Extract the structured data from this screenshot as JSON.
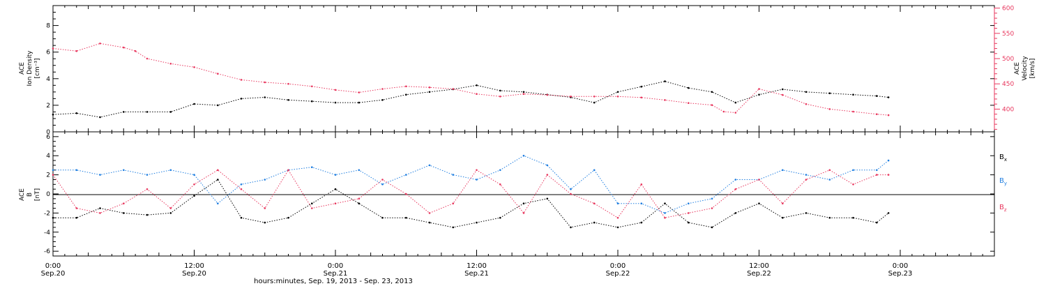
{
  "colors": {
    "black": "#000000",
    "pink": "#e8375e",
    "blue": "#1f7ee0",
    "axis": "#000000",
    "pinkAxis": "#e8375e"
  },
  "xaxis": {
    "label": "hours:minutes, Sep. 19, 2013 - Sep. 23, 2013",
    "range_hours": [
      0,
      80
    ],
    "ticks": [
      {
        "hour": 0,
        "time": "0:00",
        "date": "Sep.20"
      },
      {
        "hour": 12,
        "time": "12:00",
        "date": "Sep.20"
      },
      {
        "hour": 24,
        "time": "0:00",
        "date": "Sep.21"
      },
      {
        "hour": 36,
        "time": "12:00",
        "date": "Sep.21"
      },
      {
        "hour": 48,
        "time": "0:00",
        "date": "Sep.22"
      },
      {
        "hour": 60,
        "time": "12:00",
        "date": "Sep.22"
      },
      {
        "hour": 72,
        "time": "0:00",
        "date": "Sep.23"
      }
    ]
  },
  "chart_data": [
    {
      "type": "scatter",
      "panel": "top",
      "title": "",
      "ylabel_left": [
        "ACE",
        "Ion Density",
        "[cm⁻³]"
      ],
      "ylabel_right": [
        "ACE",
        "Velocity",
        "[km/s]"
      ],
      "ylim_left": [
        0,
        9.5
      ],
      "ylim_right": [
        355,
        605
      ],
      "yticks_left": [
        0,
        2,
        4,
        6,
        8
      ],
      "yticks_right": [
        400,
        450,
        500,
        550,
        600
      ],
      "series": [
        {
          "name": "",
          "axis": "left",
          "color": "black",
          "x_hours": [
            0,
            2,
            4,
            6,
            8,
            10,
            12,
            14,
            16,
            18,
            20,
            22,
            24,
            26,
            28,
            30,
            32,
            34,
            36,
            38,
            40,
            42,
            44,
            46,
            48,
            50,
            52,
            54,
            56,
            58,
            60,
            62,
            64,
            66,
            68,
            70,
            71
          ],
          "y": [
            1.3,
            1.4,
            1.1,
            1.5,
            1.5,
            1.5,
            2.1,
            2.0,
            2.5,
            2.6,
            2.4,
            2.3,
            2.2,
            2.2,
            2.4,
            2.8,
            3.0,
            3.2,
            3.5,
            3.1,
            3.0,
            2.8,
            2.6,
            2.2,
            3.0,
            3.4,
            3.8,
            3.3,
            3.0,
            2.2,
            2.8,
            3.2,
            3.0,
            2.9,
            2.8,
            2.7,
            2.6
          ]
        },
        {
          "name": "",
          "axis": "right",
          "color": "pink",
          "x_hours": [
            0,
            2,
            4,
            6,
            7,
            8,
            10,
            12,
            14,
            16,
            18,
            20,
            22,
            24,
            26,
            28,
            30,
            32,
            34,
            36,
            38,
            40,
            42,
            44,
            46,
            48,
            50,
            52,
            54,
            56,
            57,
            58,
            60,
            62,
            64,
            66,
            68,
            70,
            71
          ],
          "y": [
            520,
            515,
            530,
            522,
            515,
            500,
            490,
            483,
            470,
            458,
            453,
            450,
            445,
            438,
            433,
            440,
            445,
            443,
            440,
            430,
            425,
            430,
            428,
            425,
            425,
            425,
            423,
            418,
            412,
            408,
            395,
            393,
            440,
            428,
            410,
            400,
            395,
            390,
            388
          ]
        }
      ]
    },
    {
      "type": "scatter",
      "panel": "bottom",
      "title": "",
      "ylabel_left": [
        "ACE",
        "B",
        "[nT]"
      ],
      "ylim": [
        -6.5,
        6.5
      ],
      "yticks": [
        -6,
        -4,
        -2,
        0,
        2,
        4,
        6
      ],
      "series": [
        {
          "name": "B",
          "subscript": "x",
          "color": "black",
          "x_hours": [
            0,
            2,
            4,
            6,
            8,
            10,
            12,
            14,
            16,
            18,
            20,
            22,
            24,
            26,
            28,
            30,
            32,
            34,
            36,
            38,
            40,
            42,
            44,
            46,
            48,
            50,
            52,
            54,
            56,
            58,
            60,
            62,
            64,
            66,
            68,
            70,
            71
          ],
          "y": [
            -2.5,
            -2.5,
            -1.5,
            -2.0,
            -2.2,
            -2.0,
            -0.2,
            1.5,
            -2.5,
            -3.0,
            -2.5,
            -1.0,
            0.5,
            -1.0,
            -2.5,
            -2.5,
            -3.0,
            -3.5,
            -3.0,
            -2.5,
            -1.0,
            -0.5,
            -3.5,
            -3.0,
            -3.5,
            -3.0,
            -1.0,
            -3.0,
            -3.5,
            -2.0,
            -1.0,
            -2.5,
            -2.0,
            -2.5,
            -2.5,
            -3.0,
            -2.0
          ]
        },
        {
          "name": "B",
          "subscript": "y",
          "color": "blue",
          "x_hours": [
            0,
            2,
            4,
            6,
            8,
            10,
            12,
            14,
            16,
            18,
            20,
            22,
            24,
            26,
            28,
            30,
            32,
            34,
            36,
            38,
            40,
            42,
            44,
            46,
            48,
            50,
            52,
            54,
            56,
            58,
            60,
            62,
            64,
            66,
            68,
            70,
            71
          ],
          "y": [
            2.5,
            2.5,
            2.0,
            2.5,
            2.0,
            2.5,
            2.0,
            -1.0,
            1.0,
            1.5,
            2.5,
            2.8,
            2.0,
            2.5,
            1.0,
            2.0,
            3.0,
            2.0,
            1.5,
            2.5,
            4.0,
            3.0,
            0.5,
            2.5,
            -1.0,
            -1.0,
            -2.0,
            -1.0,
            -0.5,
            1.5,
            1.5,
            2.5,
            2.0,
            1.5,
            2.5,
            2.5,
            3.5
          ]
        },
        {
          "name": "B",
          "subscript": "z",
          "color": "pink",
          "x_hours": [
            0,
            2,
            4,
            6,
            8,
            10,
            12,
            14,
            16,
            18,
            20,
            22,
            24,
            26,
            28,
            30,
            32,
            34,
            36,
            38,
            40,
            42,
            44,
            46,
            48,
            50,
            52,
            54,
            56,
            58,
            60,
            62,
            64,
            66,
            68,
            70,
            71
          ],
          "y": [
            2.0,
            -1.5,
            -2.0,
            -1.0,
            0.5,
            -1.5,
            1.0,
            2.5,
            0.5,
            -1.5,
            2.5,
            -1.5,
            -1.0,
            -0.5,
            1.5,
            0.0,
            -2.0,
            -1.0,
            2.5,
            1.0,
            -2.0,
            2.0,
            0.0,
            -1.0,
            -2.5,
            1.0,
            -2.5,
            -2.0,
            -1.5,
            0.5,
            1.5,
            -1.0,
            1.5,
            2.5,
            1.0,
            2.0,
            2.0
          ]
        }
      ]
    }
  ]
}
